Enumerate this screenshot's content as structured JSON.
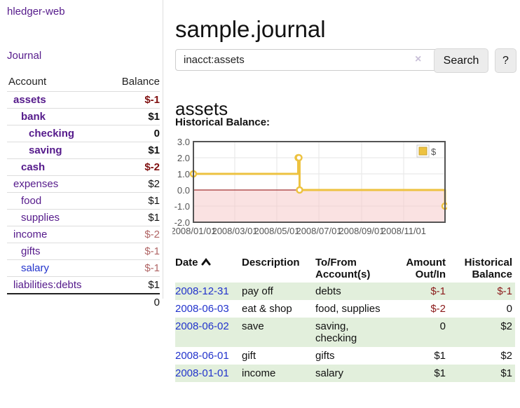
{
  "app": {
    "brand": "hledger-web",
    "nav_journal": "Journal"
  },
  "sidebar": {
    "headers": [
      "Account",
      "Balance"
    ],
    "accounts": [
      {
        "name": "assets",
        "balance": "$-1",
        "indent": 0,
        "in_filter": true,
        "link_color": "purple",
        "balance_style": "neg-dark"
      },
      {
        "name": "bank",
        "balance": "$1",
        "indent": 1,
        "in_filter": true,
        "link_color": "purple",
        "balance_style": "normal"
      },
      {
        "name": "checking",
        "balance": "0",
        "indent": 2,
        "in_filter": true,
        "link_color": "purple",
        "balance_style": "normal"
      },
      {
        "name": "saving",
        "balance": "$1",
        "indent": 2,
        "in_filter": true,
        "link_color": "purple",
        "balance_style": "normal"
      },
      {
        "name": "cash",
        "balance": "$-2",
        "indent": 1,
        "in_filter": true,
        "link_color": "purple",
        "balance_style": "neg-dark"
      },
      {
        "name": "expenses",
        "balance": "$2",
        "indent": 0,
        "in_filter": false,
        "link_color": "purple",
        "balance_style": "normal"
      },
      {
        "name": "food",
        "balance": "$1",
        "indent": 1,
        "in_filter": false,
        "link_color": "purple",
        "balance_style": "normal"
      },
      {
        "name": "supplies",
        "balance": "$1",
        "indent": 1,
        "in_filter": false,
        "link_color": "purple",
        "balance_style": "normal"
      },
      {
        "name": "income",
        "balance": "$-2",
        "indent": 0,
        "in_filter": false,
        "link_color": "purple",
        "balance_style": "neg-light"
      },
      {
        "name": "gifts",
        "balance": "$-1",
        "indent": 1,
        "in_filter": false,
        "link_color": "purple",
        "balance_style": "neg-light"
      },
      {
        "name": "salary",
        "balance": "$-1",
        "indent": 1,
        "in_filter": false,
        "link_color": "blue",
        "balance_style": "neg-light"
      },
      {
        "name": "liabilities:debts",
        "balance": "$1",
        "indent": 0,
        "in_filter": false,
        "link_color": "purple",
        "balance_style": "normal"
      }
    ],
    "total": "0"
  },
  "main": {
    "title": "sample.journal",
    "search": {
      "value": "inacct:assets",
      "clear_icon": "×",
      "button_label": "Search",
      "help_label": "?"
    },
    "account_heading": "assets",
    "chart_title": "Historical Balance:"
  },
  "chart_data": {
    "type": "line",
    "steps": true,
    "title": "Historical Balance:",
    "series": [
      {
        "name": "$",
        "color": "#edc240",
        "points": [
          {
            "date": "2008-01-01",
            "value": 1
          },
          {
            "date": "2008-06-01",
            "value": 2
          },
          {
            "date": "2008-06-02",
            "value": 2
          },
          {
            "date": "2008-06-03",
            "value": 0
          },
          {
            "date": "2008-12-31",
            "value": -1
          }
        ]
      }
    ],
    "x_range": [
      "2008-01-01",
      "2008-12-31"
    ],
    "x_ticks": [
      "2008/01/01",
      "2008/03/01",
      "2008/05/01",
      "2008/07/01",
      "2008/09/01",
      "2008/11/01"
    ],
    "y_ticks": [
      3.0,
      2.0,
      1.0,
      0.0,
      -1.0,
      -2.0
    ],
    "ylim": [
      -2,
      3
    ],
    "grid": true,
    "legend": {
      "label": "$",
      "position": "top-right"
    },
    "colors": {
      "line": "#edc240",
      "point_fill": "#ffffff",
      "negative_region": "#f6c6c6",
      "zero_line": "#8b0000",
      "border": "#545454",
      "gridline": "#e6e6e6",
      "tick_text": "#545454",
      "legend_box_border": "#cccccc"
    }
  },
  "register": {
    "headers": [
      "Date",
      "Description",
      "To/From Account(s)",
      "Amount Out/In",
      "Historical Balance"
    ],
    "rows": [
      {
        "date": "2008-12-31",
        "description": "pay off",
        "accounts": "debts",
        "amount": "$-1",
        "balance": "$-1",
        "amount_negative": true,
        "balance_negative": true,
        "shade": true
      },
      {
        "date": "2008-06-03",
        "description": "eat & shop",
        "accounts": "food, supplies",
        "amount": "$-2",
        "balance": "0",
        "amount_negative": true,
        "balance_negative": false,
        "shade": false
      },
      {
        "date": "2008-06-02",
        "description": "save",
        "accounts": "saving, checking",
        "amount": "0",
        "balance": "$2",
        "amount_negative": false,
        "balance_negative": false,
        "shade": true
      },
      {
        "date": "2008-06-01",
        "description": "gift",
        "accounts": "gifts",
        "amount": "$1",
        "balance": "$2",
        "amount_negative": false,
        "balance_negative": false,
        "shade": false
      },
      {
        "date": "2008-01-01",
        "description": "income",
        "accounts": "salary",
        "amount": "$1",
        "balance": "$1",
        "amount_negative": false,
        "balance_negative": false,
        "shade": true
      }
    ]
  },
  "colors": {
    "link_purple": "#551a8b",
    "link_blue": "#2233cc",
    "negative_dark": "#7f0f0f",
    "negative_light": "#b06565",
    "register_stripe": "#e2efdc",
    "accent_yellow": "#edc240"
  }
}
